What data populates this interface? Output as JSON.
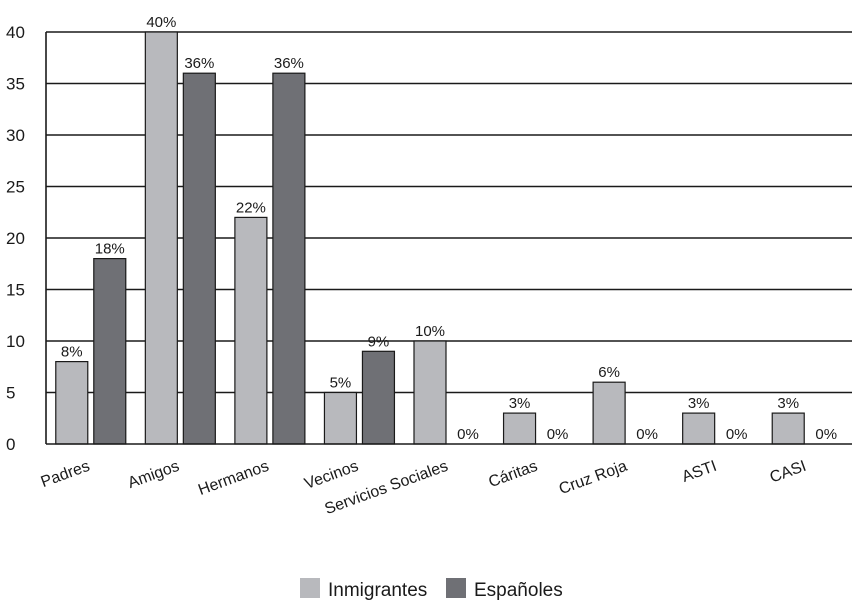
{
  "chart_data": {
    "type": "bar",
    "title": "",
    "xlabel": "",
    "ylabel": "",
    "ylim": [
      0,
      40
    ],
    "yticks": [
      0,
      5,
      10,
      15,
      20,
      25,
      30,
      35,
      40
    ],
    "grid": true,
    "legend_position": "bottom",
    "categories": [
      "Padres",
      "Amigos",
      "Hermanos",
      "Vecinos",
      "Servicios Sociales",
      "Cáritas",
      "Cruz Roja",
      "ASTI",
      "CASI"
    ],
    "series": [
      {
        "name": "Inmigrantes",
        "color": "#b8b9bd",
        "values": [
          8,
          40,
          22,
          5,
          10,
          3,
          6,
          3,
          3
        ],
        "labels": [
          "8%",
          "40%",
          "22%",
          "5%",
          "10%",
          "3%",
          "6%",
          "3%",
          "3%"
        ]
      },
      {
        "name": "Españoles",
        "color": "#6f7075",
        "values": [
          18,
          36,
          36,
          9,
          0,
          0,
          0,
          0,
          0
        ],
        "labels": [
          "18%",
          "36%",
          "36%",
          "9%",
          "0%",
          "0%",
          "0%",
          "0%",
          "0%"
        ]
      }
    ]
  }
}
